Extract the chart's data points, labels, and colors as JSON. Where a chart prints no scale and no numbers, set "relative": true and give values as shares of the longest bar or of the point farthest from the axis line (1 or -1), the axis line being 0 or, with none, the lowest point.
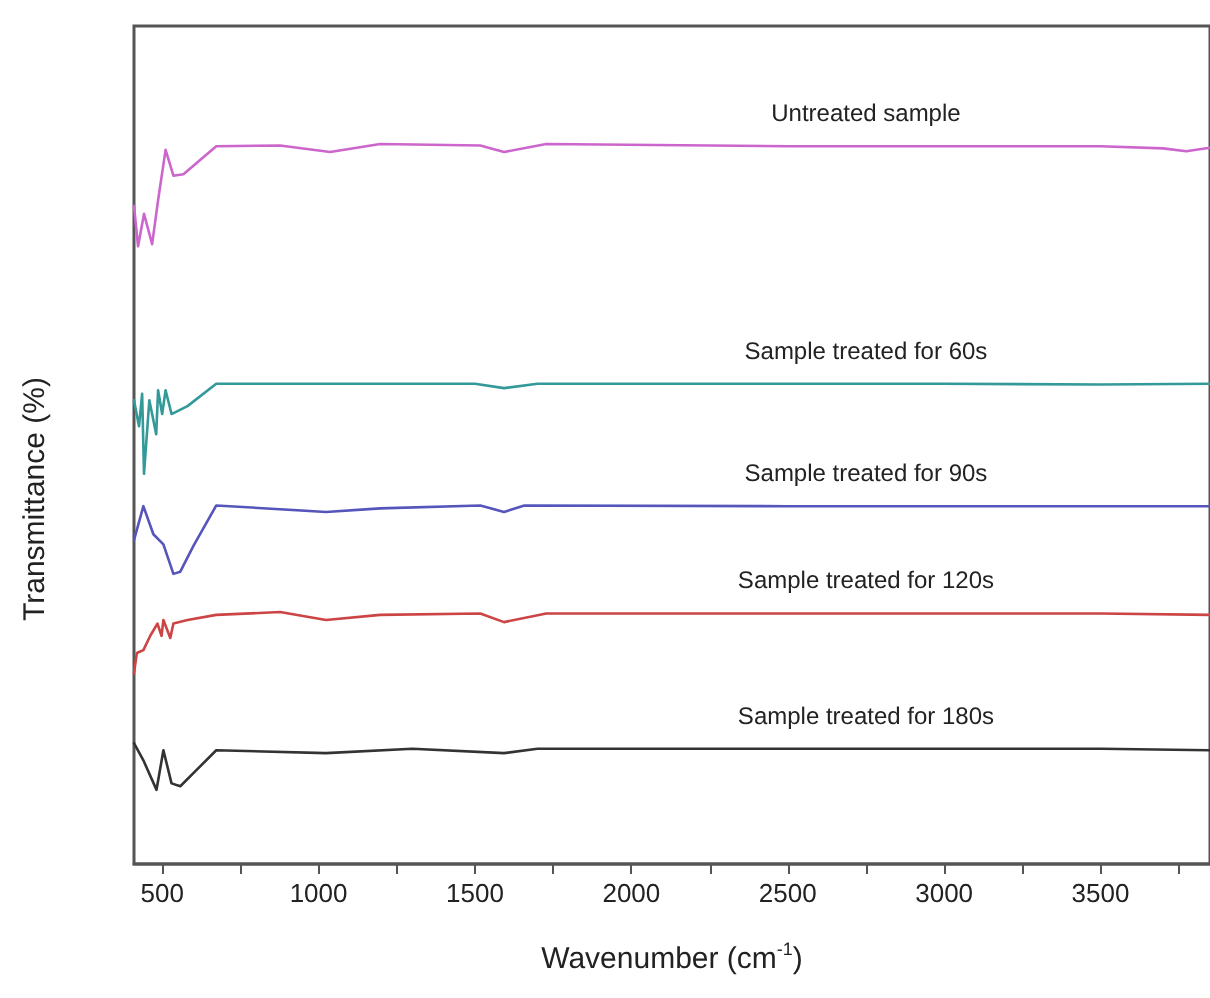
{
  "chart_data": {
    "type": "line",
    "relative": true,
    "xlabel": "Wavenumber (cm$^{-1}$)",
    "ylabel": "Transmittance (%)",
    "xlim": [
      410,
      3850
    ],
    "xticks": [
      500,
      {
        "value": 750,
        "label": null
      },
      1000,
      {
        "value": 1250,
        "label": null
      },
      1500,
      {
        "value": 1750,
        "label": null
      },
      2000,
      {
        "value": 2250,
        "label": null
      },
      2500,
      {
        "value": 2750,
        "label": null
      },
      3000,
      {
        "value": 3250,
        "label": null
      },
      3500,
      {
        "value": 3750,
        "label": null
      }
    ],
    "grid": false,
    "legend": false,
    "marker": "none",
    "line_style": "solid",
    "series": [
      {
        "name": "Untreated sample",
        "color": "#cc66cc",
        "x": [
          410,
          423,
          442,
          468,
          487,
          511,
          536,
          568,
          673,
          877,
          1037,
          1197,
          1517,
          1593,
          1728,
          2500,
          2750,
          3000,
          3500,
          3700,
          3774,
          3850
        ],
        "values": [
          0.914,
          0.858,
          0.903,
          0.861,
          0.922,
          0.992,
          0.956,
          0.958,
          0.997,
          0.998,
          0.989,
          1,
          0.998,
          0.989,
          1,
          0.997,
          0.997,
          0.997,
          0.997,
          0.994,
          0.99,
          0.995
        ]
      },
      {
        "name": "Sample treated for 60s",
        "color": "#339999",
        "x": [
          410,
          426,
          436,
          442,
          459,
          481,
          487,
          500,
          511,
          530,
          581,
          673,
          1000,
          1500,
          1593,
          1700,
          2500,
          2750,
          3000,
          3500,
          3850
        ],
        "values": [
          0.644,
          0.608,
          0.653,
          0.542,
          0.644,
          0.597,
          0.658,
          0.625,
          0.658,
          0.625,
          0.636,
          0.667,
          0.667,
          0.667,
          0.661,
          0.667,
          0.667,
          0.667,
          0.667,
          0.666,
          0.667
        ]
      },
      {
        "name": "Sample treated for 90s",
        "color": "#5555bb",
        "x": [
          410,
          440,
          472,
          504,
          536,
          558,
          600,
          673,
          1024,
          1197,
          1517,
          1593,
          1658,
          2500,
          2750,
          3000,
          3500,
          3850
        ],
        "values": [
          0.45,
          0.497,
          0.458,
          0.444,
          0.403,
          0.406,
          0.442,
          0.498,
          0.489,
          0.494,
          0.498,
          0.489,
          0.498,
          0.497,
          0.497,
          0.497,
          0.497,
          0.497
        ]
      },
      {
        "name": "Sample treated for 120s",
        "color": "#cc4444",
        "x": [
          410,
          419,
          440,
          462,
          485,
          498,
          504,
          526,
          536,
          581,
          673,
          877,
          1024,
          1197,
          1517,
          1593,
          1728,
          2500,
          2750,
          3000,
          3500,
          3850
        ],
        "values": [
          0.265,
          0.293,
          0.297,
          0.317,
          0.334,
          0.317,
          0.339,
          0.314,
          0.334,
          0.339,
          0.346,
          0.35,
          0.339,
          0.346,
          0.348,
          0.336,
          0.348,
          0.348,
          0.348,
          0.348,
          0.348,
          0.346
        ]
      },
      {
        "name": "Sample treated for 180s",
        "color": "#333333",
        "x": [
          410,
          440,
          482,
          504,
          530,
          558,
          611,
          673,
          1024,
          1300,
          1593,
          1700,
          2500,
          2750,
          3000,
          3500,
          3850
        ],
        "values": [
          0.168,
          0.144,
          0.103,
          0.158,
          0.112,
          0.108,
          0.131,
          0.158,
          0.154,
          0.16,
          0.154,
          0.16,
          0.16,
          0.16,
          0.16,
          0.16,
          0.158
        ]
      }
    ]
  }
}
